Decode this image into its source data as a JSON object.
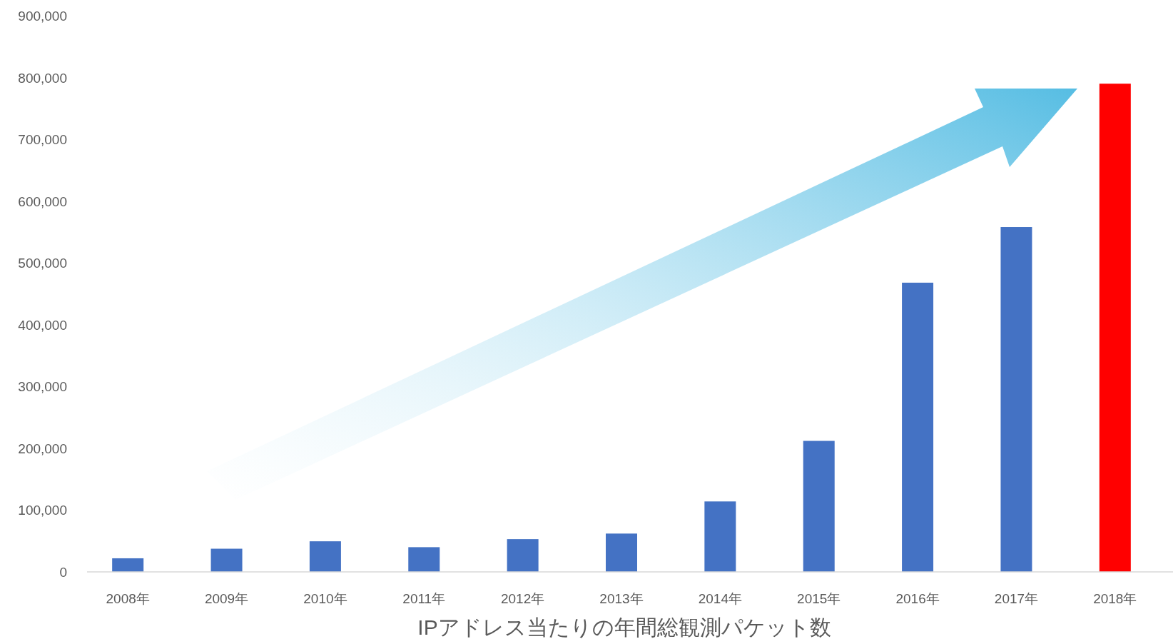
{
  "chart_data": {
    "type": "bar",
    "xlabel": "IPアドレス当たりの年間総観測パケット数",
    "categories": [
      "2008年",
      "2009年",
      "2010年",
      "2011年",
      "2012年",
      "2013年",
      "2014年",
      "2015年",
      "2016年",
      "2017年",
      "2018年"
    ],
    "values": [
      22000,
      37500,
      49500,
      40000,
      53000,
      62000,
      114000,
      212000,
      468000,
      558000,
      790000
    ],
    "colors": [
      "#4472c4",
      "#4472c4",
      "#4472c4",
      "#4472c4",
      "#4472c4",
      "#4472c4",
      "#4472c4",
      "#4472c4",
      "#4472c4",
      "#4472c4",
      "#ff0000"
    ],
    "ylim": [
      0,
      900000
    ],
    "yticks": [
      0,
      {
        "value": 100000,
        "label": "100,000"
      },
      {
        "value": 200000,
        "label": "200,000"
      },
      {
        "value": 300000,
        "label": "300,000"
      },
      {
        "value": 400000,
        "label": "400,000"
      },
      {
        "value": 500000,
        "label": "500,000"
      },
      {
        "value": 600000,
        "label": "600,000"
      },
      {
        "value": 700000,
        "label": "700,000"
      },
      {
        "value": 800000,
        "label": "800,000"
      },
      {
        "value": 900000,
        "label": "900,000"
      }
    ],
    "grid": false
  }
}
